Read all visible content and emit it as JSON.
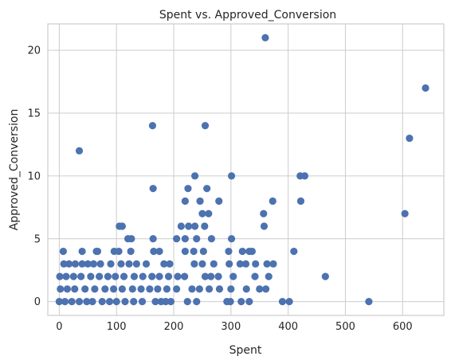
{
  "chart_data": {
    "type": "scatter",
    "title": "Spent vs. Approved_Conversion",
    "xlabel": "Spent",
    "ylabel": "Approved_Conversion",
    "xlim": [
      -20,
      672
    ],
    "ylim": [
      -1.1,
      22.1
    ],
    "xticks": [
      0,
      100,
      200,
      300,
      400,
      500,
      600
    ],
    "yticks": [
      0,
      5,
      10,
      15,
      20
    ],
    "grid": true,
    "color": "#4c72b0",
    "points": [
      {
        "x": 360,
        "y": 21
      },
      {
        "x": 640,
        "y": 17
      },
      {
        "x": 163,
        "y": 14
      },
      {
        "x": 255,
        "y": 14
      },
      {
        "x": 612,
        "y": 13
      },
      {
        "x": 35,
        "y": 12
      },
      {
        "x": 237,
        "y": 10
      },
      {
        "x": 301,
        "y": 10
      },
      {
        "x": 421,
        "y": 10
      },
      {
        "x": 429,
        "y": 10
      },
      {
        "x": 164,
        "y": 9
      },
      {
        "x": 225,
        "y": 9
      },
      {
        "x": 258,
        "y": 9
      },
      {
        "x": 220,
        "y": 8
      },
      {
        "x": 246,
        "y": 8
      },
      {
        "x": 279,
        "y": 8
      },
      {
        "x": 373,
        "y": 8
      },
      {
        "x": 422,
        "y": 8
      },
      {
        "x": 250,
        "y": 7
      },
      {
        "x": 261,
        "y": 7
      },
      {
        "x": 357,
        "y": 7
      },
      {
        "x": 604,
        "y": 7
      },
      {
        "x": 105,
        "y": 6
      },
      {
        "x": 110,
        "y": 6
      },
      {
        "x": 213,
        "y": 6
      },
      {
        "x": 226,
        "y": 6
      },
      {
        "x": 237,
        "y": 6
      },
      {
        "x": 254,
        "y": 6
      },
      {
        "x": 358,
        "y": 6
      },
      {
        "x": 120,
        "y": 5
      },
      {
        "x": 126,
        "y": 5
      },
      {
        "x": 164,
        "y": 5
      },
      {
        "x": 205,
        "y": 5
      },
      {
        "x": 220,
        "y": 5
      },
      {
        "x": 240,
        "y": 5
      },
      {
        "x": 266,
        "y": 5
      },
      {
        "x": 301,
        "y": 5
      },
      {
        "x": 7,
        "y": 4
      },
      {
        "x": 40,
        "y": 4
      },
      {
        "x": 65,
        "y": 4
      },
      {
        "x": 67,
        "y": 4
      },
      {
        "x": 96,
        "y": 4
      },
      {
        "x": 104,
        "y": 4
      },
      {
        "x": 125,
        "y": 4
      },
      {
        "x": 165,
        "y": 4
      },
      {
        "x": 175,
        "y": 4
      },
      {
        "x": 220,
        "y": 4
      },
      {
        "x": 235,
        "y": 4
      },
      {
        "x": 252,
        "y": 4
      },
      {
        "x": 296,
        "y": 4
      },
      {
        "x": 320,
        "y": 4
      },
      {
        "x": 332,
        "y": 4
      },
      {
        "x": 337,
        "y": 4
      },
      {
        "x": 410,
        "y": 4
      },
      {
        "x": 8,
        "y": 3
      },
      {
        "x": 17,
        "y": 3
      },
      {
        "x": 28,
        "y": 3
      },
      {
        "x": 40,
        "y": 3
      },
      {
        "x": 50,
        "y": 3
      },
      {
        "x": 60,
        "y": 3
      },
      {
        "x": 72,
        "y": 3
      },
      {
        "x": 90,
        "y": 3
      },
      {
        "x": 108,
        "y": 3
      },
      {
        "x": 122,
        "y": 3
      },
      {
        "x": 135,
        "y": 3
      },
      {
        "x": 152,
        "y": 3
      },
      {
        "x": 183,
        "y": 3
      },
      {
        "x": 193,
        "y": 3
      },
      {
        "x": 236,
        "y": 3
      },
      {
        "x": 250,
        "y": 3
      },
      {
        "x": 270,
        "y": 3
      },
      {
        "x": 297,
        "y": 3
      },
      {
        "x": 316,
        "y": 3
      },
      {
        "x": 326,
        "y": 3
      },
      {
        "x": 343,
        "y": 3
      },
      {
        "x": 363,
        "y": 3
      },
      {
        "x": 374,
        "y": 3
      },
      {
        "x": 1,
        "y": 2
      },
      {
        "x": 12,
        "y": 2
      },
      {
        "x": 25,
        "y": 2
      },
      {
        "x": 38,
        "y": 2
      },
      {
        "x": 55,
        "y": 2
      },
      {
        "x": 70,
        "y": 2
      },
      {
        "x": 85,
        "y": 2
      },
      {
        "x": 98,
        "y": 2
      },
      {
        "x": 113,
        "y": 2
      },
      {
        "x": 131,
        "y": 2
      },
      {
        "x": 146,
        "y": 2
      },
      {
        "x": 162,
        "y": 2
      },
      {
        "x": 175,
        "y": 2
      },
      {
        "x": 191,
        "y": 2
      },
      {
        "x": 207,
        "y": 2
      },
      {
        "x": 219,
        "y": 2
      },
      {
        "x": 255,
        "y": 2
      },
      {
        "x": 265,
        "y": 2
      },
      {
        "x": 278,
        "y": 2
      },
      {
        "x": 304,
        "y": 2
      },
      {
        "x": 342,
        "y": 2
      },
      {
        "x": 366,
        "y": 2
      },
      {
        "x": 465,
        "y": 2
      },
      {
        "x": 2,
        "y": 1
      },
      {
        "x": 14,
        "y": 1
      },
      {
        "x": 27,
        "y": 1
      },
      {
        "x": 45,
        "y": 1
      },
      {
        "x": 62,
        "y": 1
      },
      {
        "x": 80,
        "y": 1
      },
      {
        "x": 95,
        "y": 1
      },
      {
        "x": 110,
        "y": 1
      },
      {
        "x": 128,
        "y": 1
      },
      {
        "x": 143,
        "y": 1
      },
      {
        "x": 158,
        "y": 1
      },
      {
        "x": 172,
        "y": 1
      },
      {
        "x": 188,
        "y": 1
      },
      {
        "x": 205,
        "y": 1
      },
      {
        "x": 232,
        "y": 1
      },
      {
        "x": 245,
        "y": 1
      },
      {
        "x": 262,
        "y": 1
      },
      {
        "x": 280,
        "y": 1
      },
      {
        "x": 300,
        "y": 1
      },
      {
        "x": 327,
        "y": 1
      },
      {
        "x": 350,
        "y": 1
      },
      {
        "x": 361,
        "y": 1
      },
      {
        "x": 0,
        "y": 0
      },
      {
        "x": 10,
        "y": 0
      },
      {
        "x": 22,
        "y": 0
      },
      {
        "x": 35,
        "y": 0
      },
      {
        "x": 48,
        "y": 0
      },
      {
        "x": 58,
        "y": 0
      },
      {
        "x": 75,
        "y": 0
      },
      {
        "x": 88,
        "y": 0
      },
      {
        "x": 100,
        "y": 0
      },
      {
        "x": 115,
        "y": 0
      },
      {
        "x": 130,
        "y": 0
      },
      {
        "x": 145,
        "y": 0
      },
      {
        "x": 168,
        "y": 0
      },
      {
        "x": 178,
        "y": 0
      },
      {
        "x": 186,
        "y": 0
      },
      {
        "x": 195,
        "y": 0
      },
      {
        "x": 224,
        "y": 0
      },
      {
        "x": 240,
        "y": 0
      },
      {
        "x": 293,
        "y": 0
      },
      {
        "x": 299,
        "y": 0
      },
      {
        "x": 318,
        "y": 0
      },
      {
        "x": 332,
        "y": 0
      },
      {
        "x": 390,
        "y": 0
      },
      {
        "x": 402,
        "y": 0
      },
      {
        "x": 541,
        "y": 0
      }
    ]
  }
}
